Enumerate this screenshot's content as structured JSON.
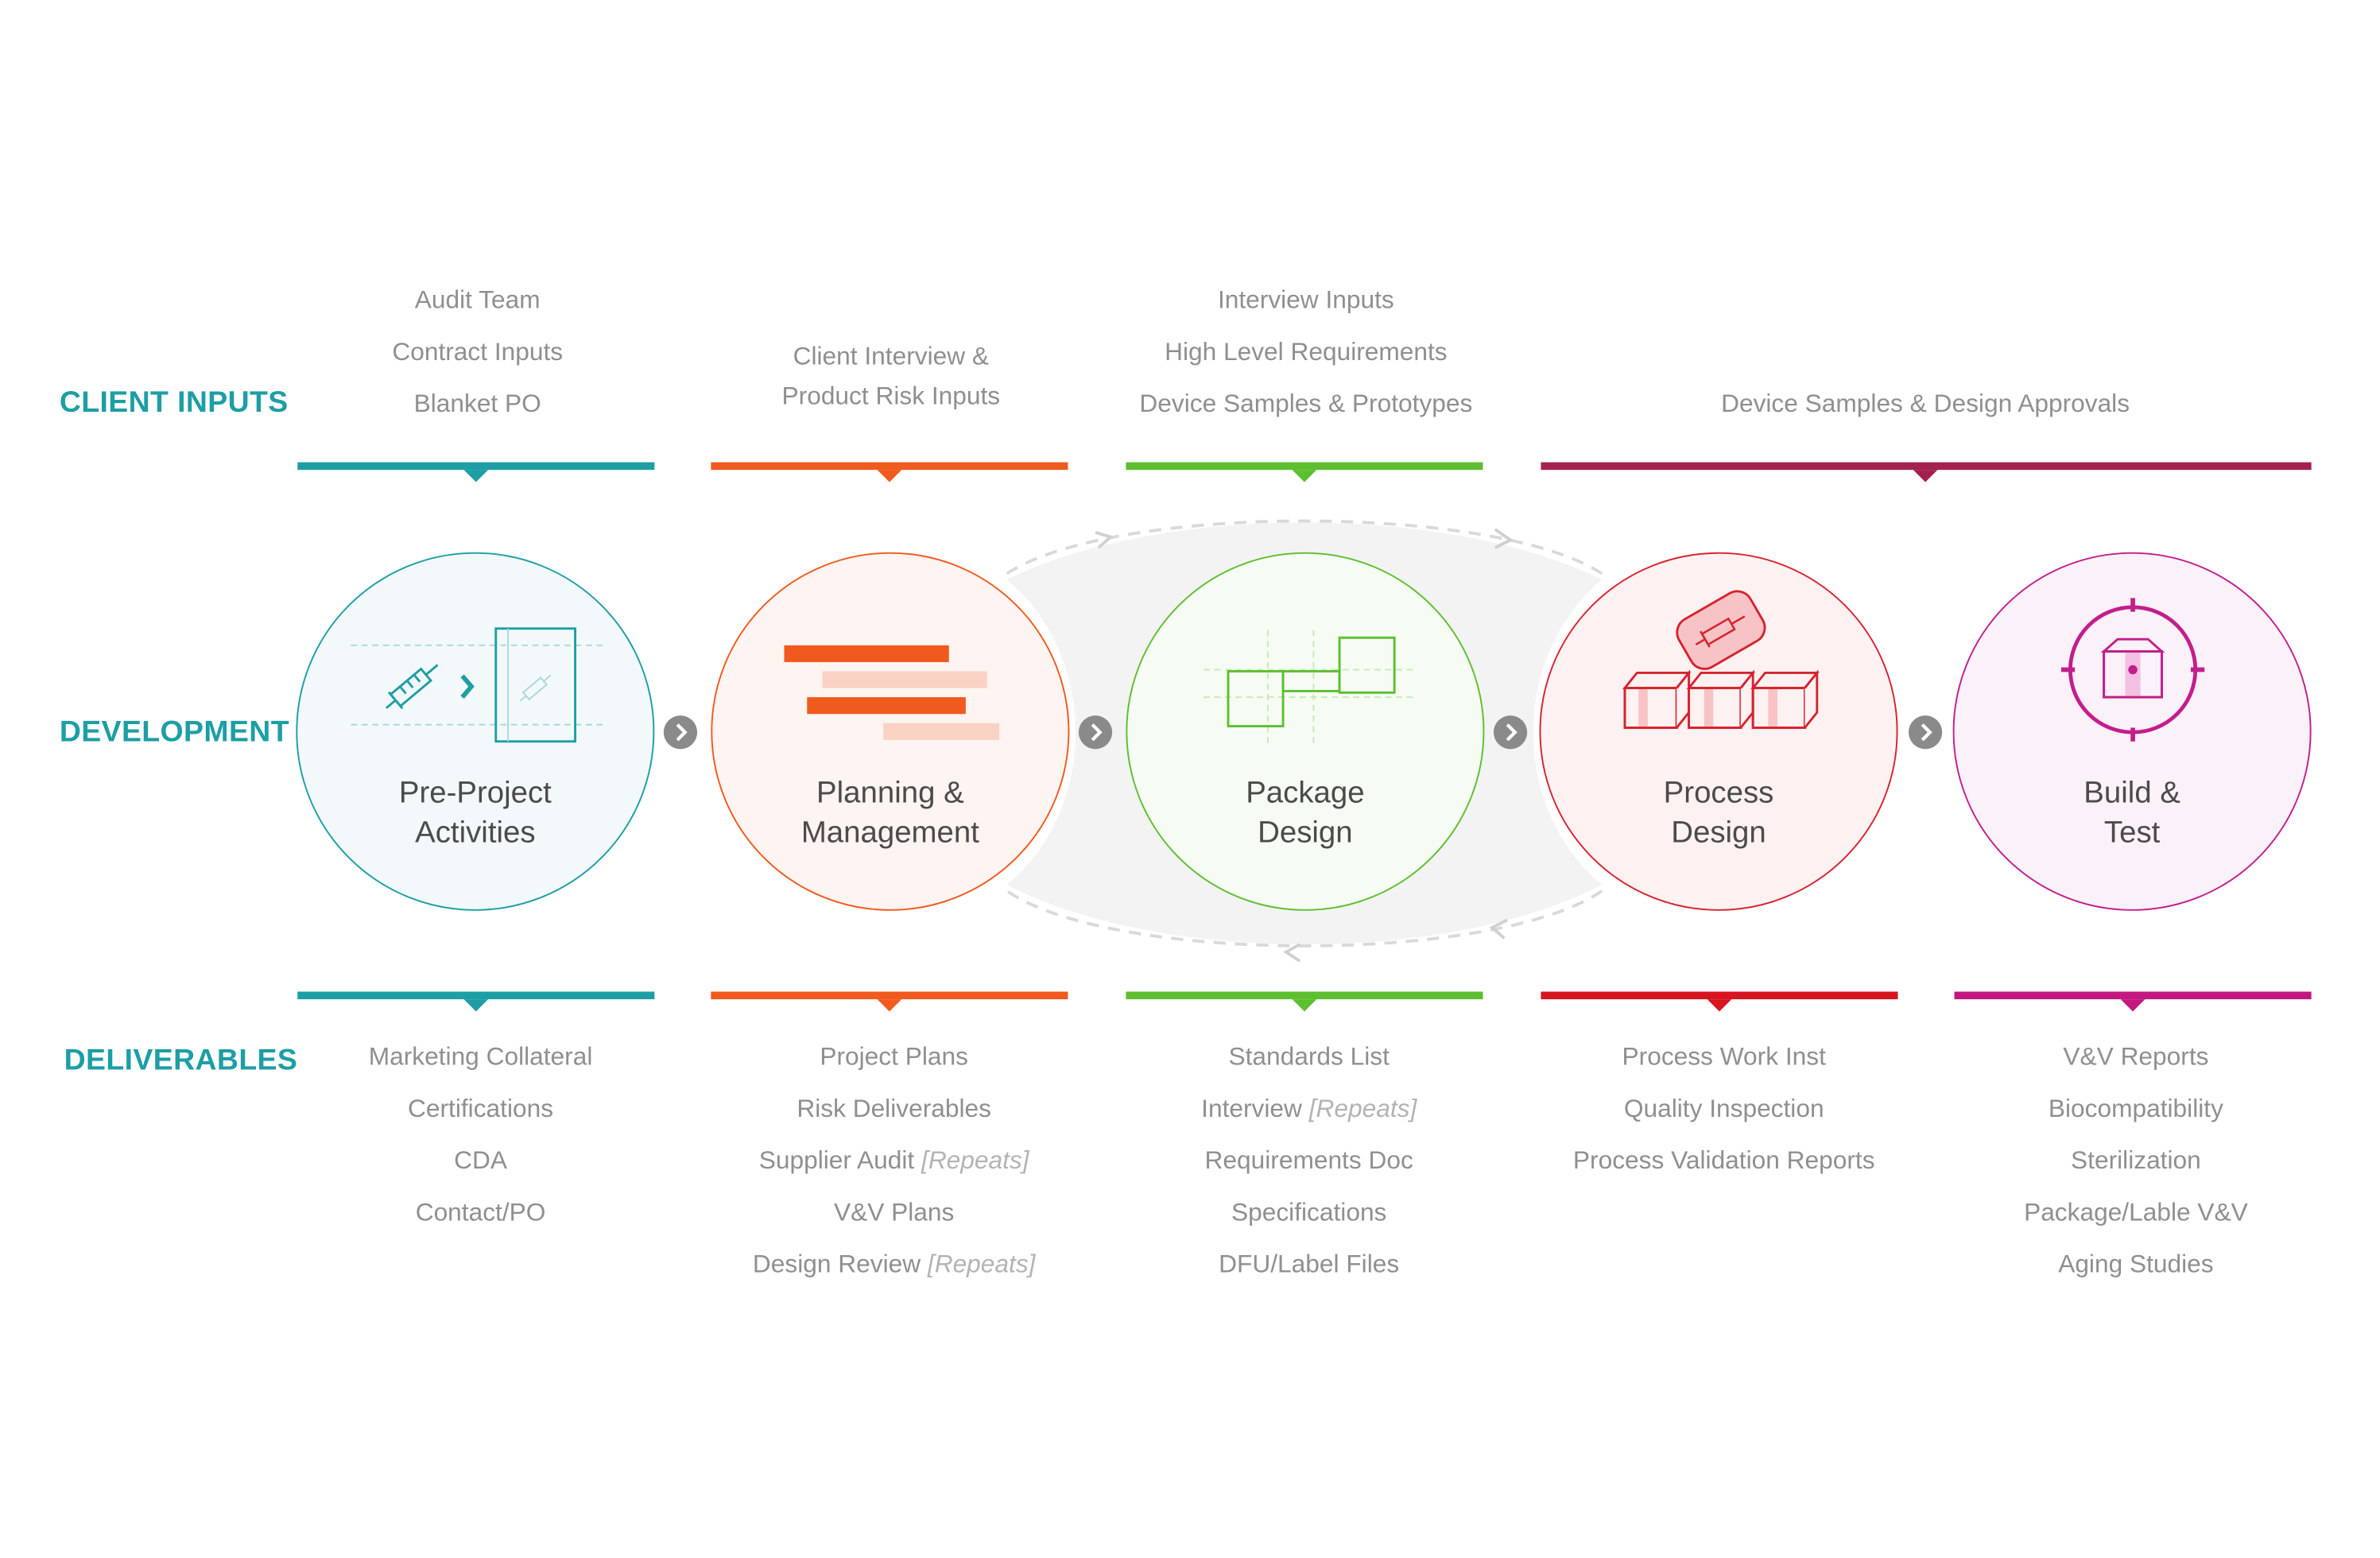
{
  "row_labels": {
    "client_inputs": "CLIENT INPUTS",
    "development": "DEVELOPMENT",
    "deliverables": "DELIVERABLES"
  },
  "client_inputs": {
    "pre_project": [
      "Audit Team",
      "Contract Inputs",
      "Blanket PO"
    ],
    "planning": [
      "Client Interview &",
      "Product Risk Inputs"
    ],
    "package": [
      "Interview Inputs",
      "High Level Requirements",
      "Device Samples & Prototypes"
    ],
    "process_build": [
      "Device Samples & Design Approvals"
    ]
  },
  "stages": [
    {
      "title_line1": "Pre-Project",
      "title_line2": "Activities",
      "icon": "syringe-to-package-icon",
      "color": "#1d9ea5",
      "fill": "#f3f9fb"
    },
    {
      "title_line1": "Planning &",
      "title_line2": "Management",
      "icon": "gantt-chart-icon",
      "color": "#f05a1e",
      "fill": "#fef4f1"
    },
    {
      "title_line1": "Package",
      "title_line2": "Design",
      "icon": "package-layout-icon",
      "color": "#5cbf2f",
      "fill": "#f6fcf3"
    },
    {
      "title_line1": "Process",
      "title_line2": "Design",
      "icon": "boxes-syringe-icon",
      "color": "#d7232e",
      "fill": "#fdf2f1"
    },
    {
      "title_line1": "Build &",
      "title_line2": "Test",
      "icon": "target-box-icon",
      "color": "#c21e8c",
      "fill": "#fbf1f8"
    }
  ],
  "bar_colors": {
    "teal": "#1d9ea5",
    "orange": "#f05a1e",
    "green": "#5cbf2f",
    "maroon": "#a4204f",
    "red": "#d7141f",
    "magenta": "#c2187f"
  },
  "deliverables": {
    "pre_project": [
      "Marketing Collateral",
      "Certifications",
      "CDA",
      "Contact/PO"
    ],
    "planning": [
      {
        "text": "Project Plans",
        "note": ""
      },
      {
        "text": "Risk Deliverables",
        "note": ""
      },
      {
        "text": "Supplier Audit",
        "note": "[Repeats]"
      },
      {
        "text": "V&V Plans",
        "note": ""
      },
      {
        "text": "Design Review",
        "note": "[Repeats]"
      }
    ],
    "package": [
      {
        "text": "Standards List",
        "note": ""
      },
      {
        "text": "Interview",
        "note": "[Repeats]"
      },
      {
        "text": "Requirements Doc",
        "note": ""
      },
      {
        "text": "Specifications",
        "note": ""
      },
      {
        "text": "DFU/Label Files",
        "note": ""
      }
    ],
    "process": [
      "Process Work Inst",
      "Quality Inspection",
      "Process Validation Reports"
    ],
    "build": [
      "V&V Reports",
      "Biocompatibility",
      "Sterilization",
      "Package/Lable V&V",
      "Aging Studies"
    ]
  }
}
